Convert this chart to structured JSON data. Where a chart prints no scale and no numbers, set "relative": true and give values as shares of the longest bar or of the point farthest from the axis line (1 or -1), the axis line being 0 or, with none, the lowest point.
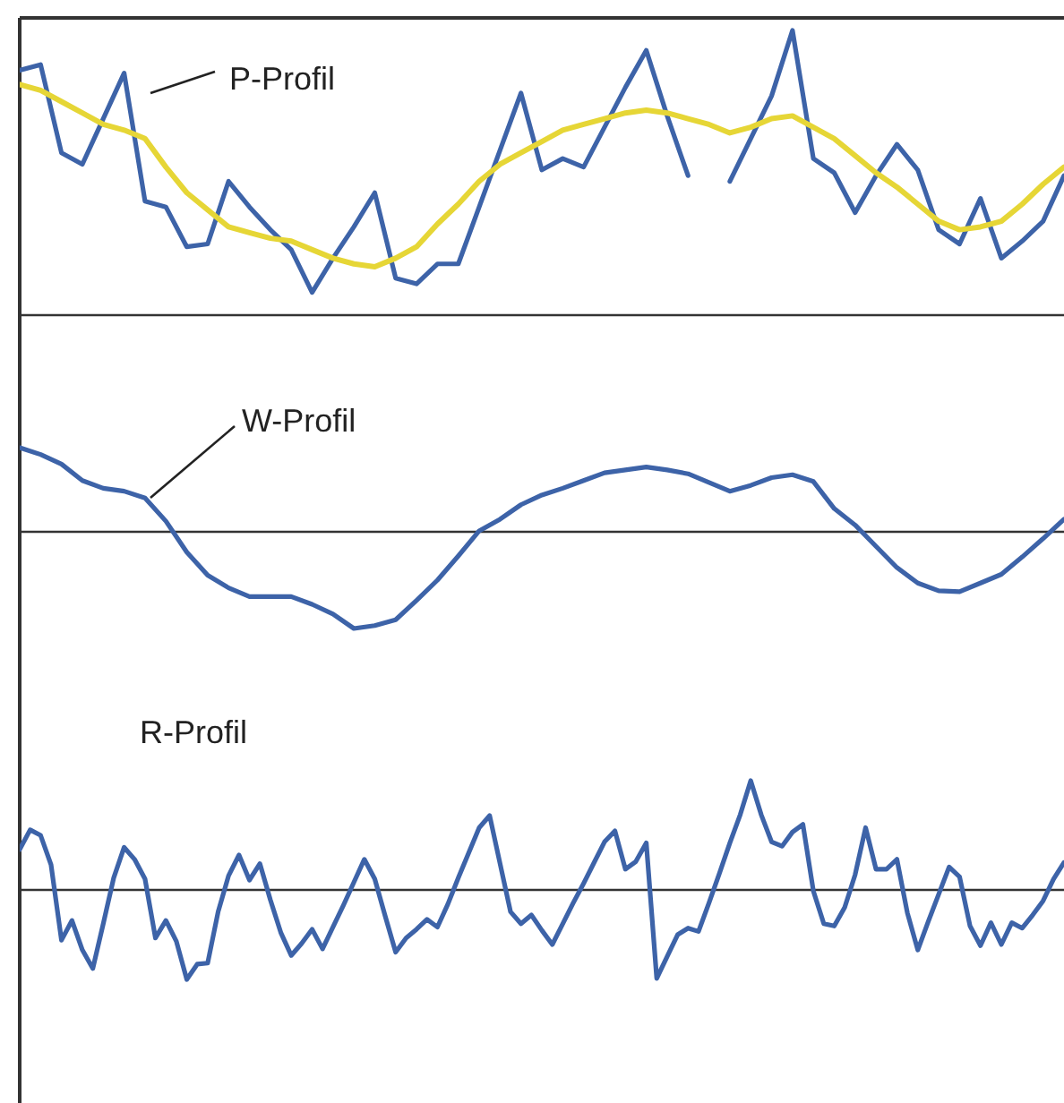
{
  "chart_data": [
    {
      "type": "line",
      "relative": true,
      "annotations": [
        "P-Profil"
      ],
      "categories": [
        null,
        null,
        null,
        null,
        null,
        null,
        null,
        null,
        null,
        null,
        null,
        null,
        null,
        null,
        null,
        null,
        null,
        null,
        null,
        null,
        null,
        null,
        null,
        null,
        null,
        null,
        null,
        null,
        null,
        null,
        null,
        null,
        null,
        null,
        null,
        null,
        null,
        null,
        null,
        null,
        null,
        null,
        null,
        null,
        null,
        null,
        null,
        null,
        null,
        null,
        null
      ],
      "series": [
        {
          "color": "#3d63a8",
          "values": [
            0.86,
            0.88,
            0.57,
            0.53,
            0.69,
            0.85,
            0.4,
            0.38,
            0.24,
            0.25,
            0.47,
            0.38,
            0.3,
            0.23,
            0.08,
            0.2,
            0.31,
            0.43,
            0.13,
            0.11,
            0.18,
            0.18,
            0.38,
            0.58,
            0.78,
            0.51,
            0.55,
            0.52,
            0.66,
            0.8,
            0.93,
            0.7,
            0.49,
            null,
            0.47,
            0.62,
            0.77,
            1,
            0.55,
            0.5,
            0.36,
            0.49,
            0.6,
            0.51,
            0.3,
            0.25,
            0.41,
            0.2,
            0.26,
            0.33,
            0.49
          ]
        },
        {
          "color": "#e6d636",
          "values": [
            0.81,
            0.79,
            0.75,
            0.71,
            0.67,
            0.65,
            0.62,
            0.52,
            0.43,
            0.37,
            0.31,
            0.29,
            0.27,
            0.26,
            0.23,
            0.2,
            0.18,
            0.17,
            0.2,
            0.24,
            0.32,
            0.39,
            0.47,
            0.53,
            0.57,
            0.61,
            0.65,
            0.67,
            0.69,
            0.71,
            0.72,
            0.71,
            0.69,
            0.67,
            0.64,
            0.66,
            0.69,
            0.7,
            0.66,
            0.62,
            0.56,
            0.5,
            0.45,
            0.39,
            0.33,
            0.3,
            0.31,
            0.33,
            0.39,
            0.46,
            0.52
          ]
        }
      ]
    },
    {
      "type": "line",
      "relative": true,
      "annotations": [
        "W-Profil"
      ],
      "categories": [
        null,
        null,
        null,
        null,
        null,
        null,
        null,
        null,
        null,
        null,
        null,
        null,
        null,
        null,
        null,
        null,
        null,
        null,
        null,
        null,
        null,
        null,
        null,
        null,
        null,
        null,
        null,
        null,
        null,
        null,
        null,
        null,
        null,
        null,
        null,
        null,
        null,
        null,
        null,
        null,
        null,
        null,
        null,
        null,
        null,
        null,
        null,
        null,
        null,
        null,
        null
      ],
      "series": [
        {
          "color": "#3d63a8",
          "values": [
            0.87,
            0.8,
            0.7,
            0.53,
            0.45,
            0.42,
            0.35,
            0.11,
            -0.21,
            -0.45,
            -0.58,
            -0.67,
            -0.67,
            -0.67,
            -0.75,
            -0.85,
            -1,
            -0.97,
            -0.91,
            -0.71,
            -0.5,
            -0.25,
            0.01,
            0.13,
            0.28,
            0.38,
            0.45,
            0.53,
            0.61,
            0.64,
            0.67,
            0.64,
            0.6,
            0.51,
            0.42,
            0.48,
            0.56,
            0.59,
            0.52,
            0.24,
            0.07,
            -0.15,
            -0.37,
            -0.53,
            -0.61,
            -0.62,
            -0.53,
            -0.44,
            -0.26,
            -0.07,
            0.13
          ]
        }
      ]
    },
    {
      "type": "line",
      "relative": true,
      "annotations": [
        "R-Profil"
      ],
      "categories": [
        null,
        null,
        null,
        null,
        null,
        null,
        null,
        null,
        null,
        null,
        null,
        null,
        null,
        null,
        null,
        null,
        null,
        null,
        null,
        null,
        null,
        null,
        null,
        null,
        null,
        null,
        null,
        null,
        null,
        null,
        null,
        null,
        null,
        null,
        null,
        null,
        null,
        null,
        null,
        null,
        null,
        null,
        null,
        null,
        null,
        null,
        null,
        null,
        null,
        null,
        null,
        null,
        null,
        null,
        null,
        null,
        null,
        null,
        null,
        null,
        null,
        null,
        null,
        null,
        null,
        null,
        null,
        null,
        null,
        null,
        null,
        null,
        null,
        null,
        null,
        null,
        null,
        null,
        null,
        null,
        null,
        null,
        null,
        null,
        null,
        null,
        null,
        null,
        null,
        null,
        null,
        null,
        null,
        null,
        null,
        null,
        null,
        null,
        null,
        null,
        null
      ],
      "series": [
        {
          "color": "#3d63a8",
          "values": [
            0.37,
            0.55,
            0.5,
            0.23,
            -0.46,
            -0.28,
            -0.55,
            -0.72,
            -0.31,
            0.11,
            0.39,
            0.28,
            0.1,
            -0.44,
            -0.28,
            -0.47,
            -0.82,
            -0.68,
            -0.67,
            -0.2,
            0.13,
            0.32,
            0.09,
            0.24,
            -0.09,
            -0.39,
            -0.6,
            -0.49,
            -0.36,
            -0.54,
            -0.34,
            -0.14,
            0.07,
            0.28,
            0.1,
            -0.24,
            -0.57,
            -0.44,
            -0.36,
            -0.27,
            -0.34,
            -0.13,
            0.11,
            0.34,
            0.57,
            0.68,
            0.24,
            -0.2,
            -0.31,
            -0.23,
            -0.37,
            -0.5,
            -0.31,
            -0.12,
            0.06,
            0.25,
            0.44,
            0.54,
            0.19,
            0.26,
            0.43,
            -0.81,
            -0.61,
            -0.41,
            -0.35,
            -0.38,
            -0.12,
            0.15,
            0.43,
            0.69,
            1,
            0.69,
            0.44,
            0.4,
            0.53,
            0.6,
            -0.01,
            -0.31,
            -0.33,
            -0.16,
            0.14,
            0.57,
            0.19,
            0.19,
            0.28,
            -0.21,
            -0.55,
            -0.29,
            -0.04,
            0.21,
            0.12,
            -0.33,
            -0.51,
            -0.3,
            -0.5,
            -0.3,
            -0.35,
            -0.23,
            -0.1,
            0.1,
            0.25
          ]
        }
      ]
    }
  ]
}
